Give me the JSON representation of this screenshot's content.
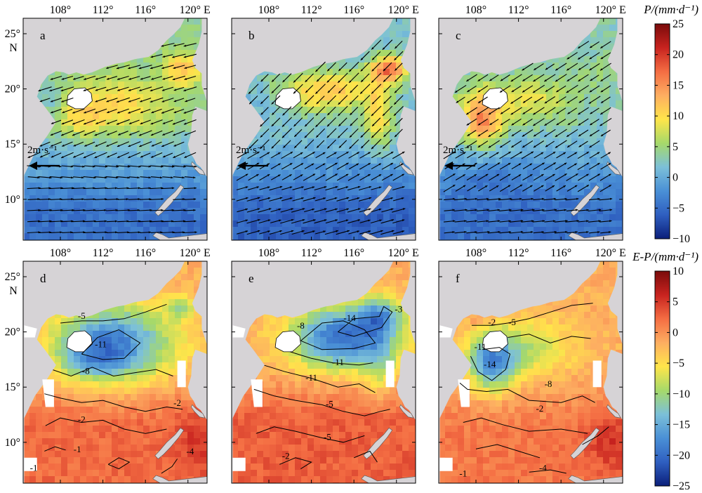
{
  "figure": {
    "rows": [
      {
        "variable": "P",
        "colorbar_title": "P/(mm·d⁻¹)",
        "colorbar_ticks": [
          "25",
          "20",
          "15",
          "10",
          "5",
          "0",
          "−5",
          "−10"
        ],
        "colorbar_range": [
          -10,
          25
        ],
        "colors": [
          "#0b1f7a",
          "#2f5fc0",
          "#4a90d6",
          "#7cc0d8",
          "#a6d96a",
          "#ffe54a",
          "#fdae61",
          "#f46d43",
          "#c8231f",
          "#7a0b0b"
        ]
      },
      {
        "variable": "E-P",
        "colorbar_title": "E-P/(mm·d⁻¹)",
        "colorbar_ticks": [
          "10",
          "5",
          "0",
          "−5",
          "−10",
          "−15",
          "−20",
          "−25"
        ],
        "colorbar_range": [
          -25,
          10
        ],
        "colors": [
          "#0b1f7a",
          "#2f5fc0",
          "#4a90d6",
          "#7cc0d8",
          "#a6d96a",
          "#ffe54a",
          "#fdae61",
          "#f46d43",
          "#c8231f",
          "#7a0b0b"
        ]
      }
    ],
    "panels": [
      {
        "letter": "a",
        "row": 0,
        "col": 0
      },
      {
        "letter": "b",
        "row": 0,
        "col": 1
      },
      {
        "letter": "c",
        "row": 0,
        "col": 2
      },
      {
        "letter": "d",
        "row": 1,
        "col": 0
      },
      {
        "letter": "e",
        "row": 1,
        "col": 1
      },
      {
        "letter": "f",
        "row": 1,
        "col": 2
      }
    ],
    "lon_ticks": [
      "108°",
      "112°",
      "116°",
      "120° E"
    ],
    "lat_ticks": [
      "25°",
      "20°",
      "15°",
      "10°"
    ],
    "lat_north_label": "N",
    "wind_scale_label": "2m·s⁻¹",
    "contour_labels": {
      "d": [
        "-5",
        "-8",
        "-11",
        "-2",
        "-2",
        "-1",
        "-1",
        "-4"
      ],
      "e": [
        "-8",
        "-14",
        "-5",
        "-11",
        "-11",
        "-5",
        "-2",
        "-3"
      ],
      "f": [
        "-2",
        "-5",
        "-11",
        "-14",
        "-8",
        "-2",
        "-4",
        "-1"
      ]
    },
    "land_color": "#d6d3d6"
  }
}
